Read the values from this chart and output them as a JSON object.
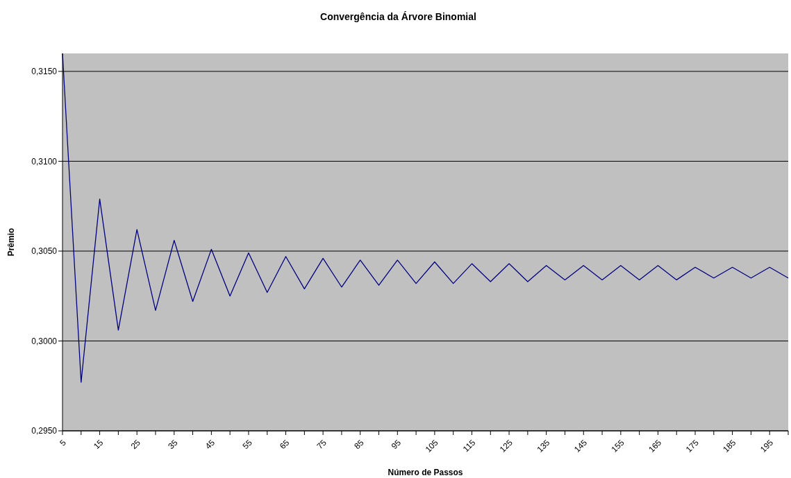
{
  "chart_data": {
    "type": "line",
    "title": "Convergência da Árvore Binomial",
    "xlabel": "Número de Passos",
    "ylabel": "Prêmio",
    "categories": [
      "5",
      null,
      "15",
      null,
      "25",
      null,
      "35",
      null,
      "45",
      null,
      "55",
      null,
      "65",
      null,
      "75",
      null,
      "85",
      null,
      "95",
      null,
      "105",
      null,
      "115",
      null,
      "125",
      null,
      "135",
      null,
      "145",
      null,
      "155",
      null,
      "165",
      null,
      "175",
      null,
      "185",
      null,
      "195",
      null
    ],
    "series": [
      {
        "color": "#000080",
        "values": [
          0.316,
          0.2977,
          0.3079,
          0.3006,
          0.3062,
          0.3017,
          0.3056,
          0.3022,
          0.3051,
          0.3025,
          0.3049,
          0.3027,
          0.3047,
          0.3029,
          0.3046,
          0.303,
          0.3045,
          0.3031,
          0.3045,
          0.3032,
          0.3044,
          0.3032,
          0.3043,
          0.3033,
          0.3043,
          0.3033,
          0.3042,
          0.3034,
          0.3042,
          0.3034,
          0.3042,
          0.3034,
          0.3042,
          0.3034,
          0.3041,
          0.3035,
          0.3041,
          0.3035,
          0.3041,
          0.3035
        ]
      }
    ],
    "ylim": [
      0.295,
      0.316
    ],
    "yticks": [
      {
        "value": 0.295,
        "label": "0,2950"
      },
      {
        "value": 0.3,
        "label": "0,3000"
      },
      {
        "value": 0.305,
        "label": "0,3050"
      },
      {
        "value": 0.31,
        "label": "0,3100"
      },
      {
        "value": 0.315,
        "label": "0,3150"
      }
    ],
    "grid": "y",
    "legend": false,
    "marker": "none",
    "line_style": "solid"
  }
}
